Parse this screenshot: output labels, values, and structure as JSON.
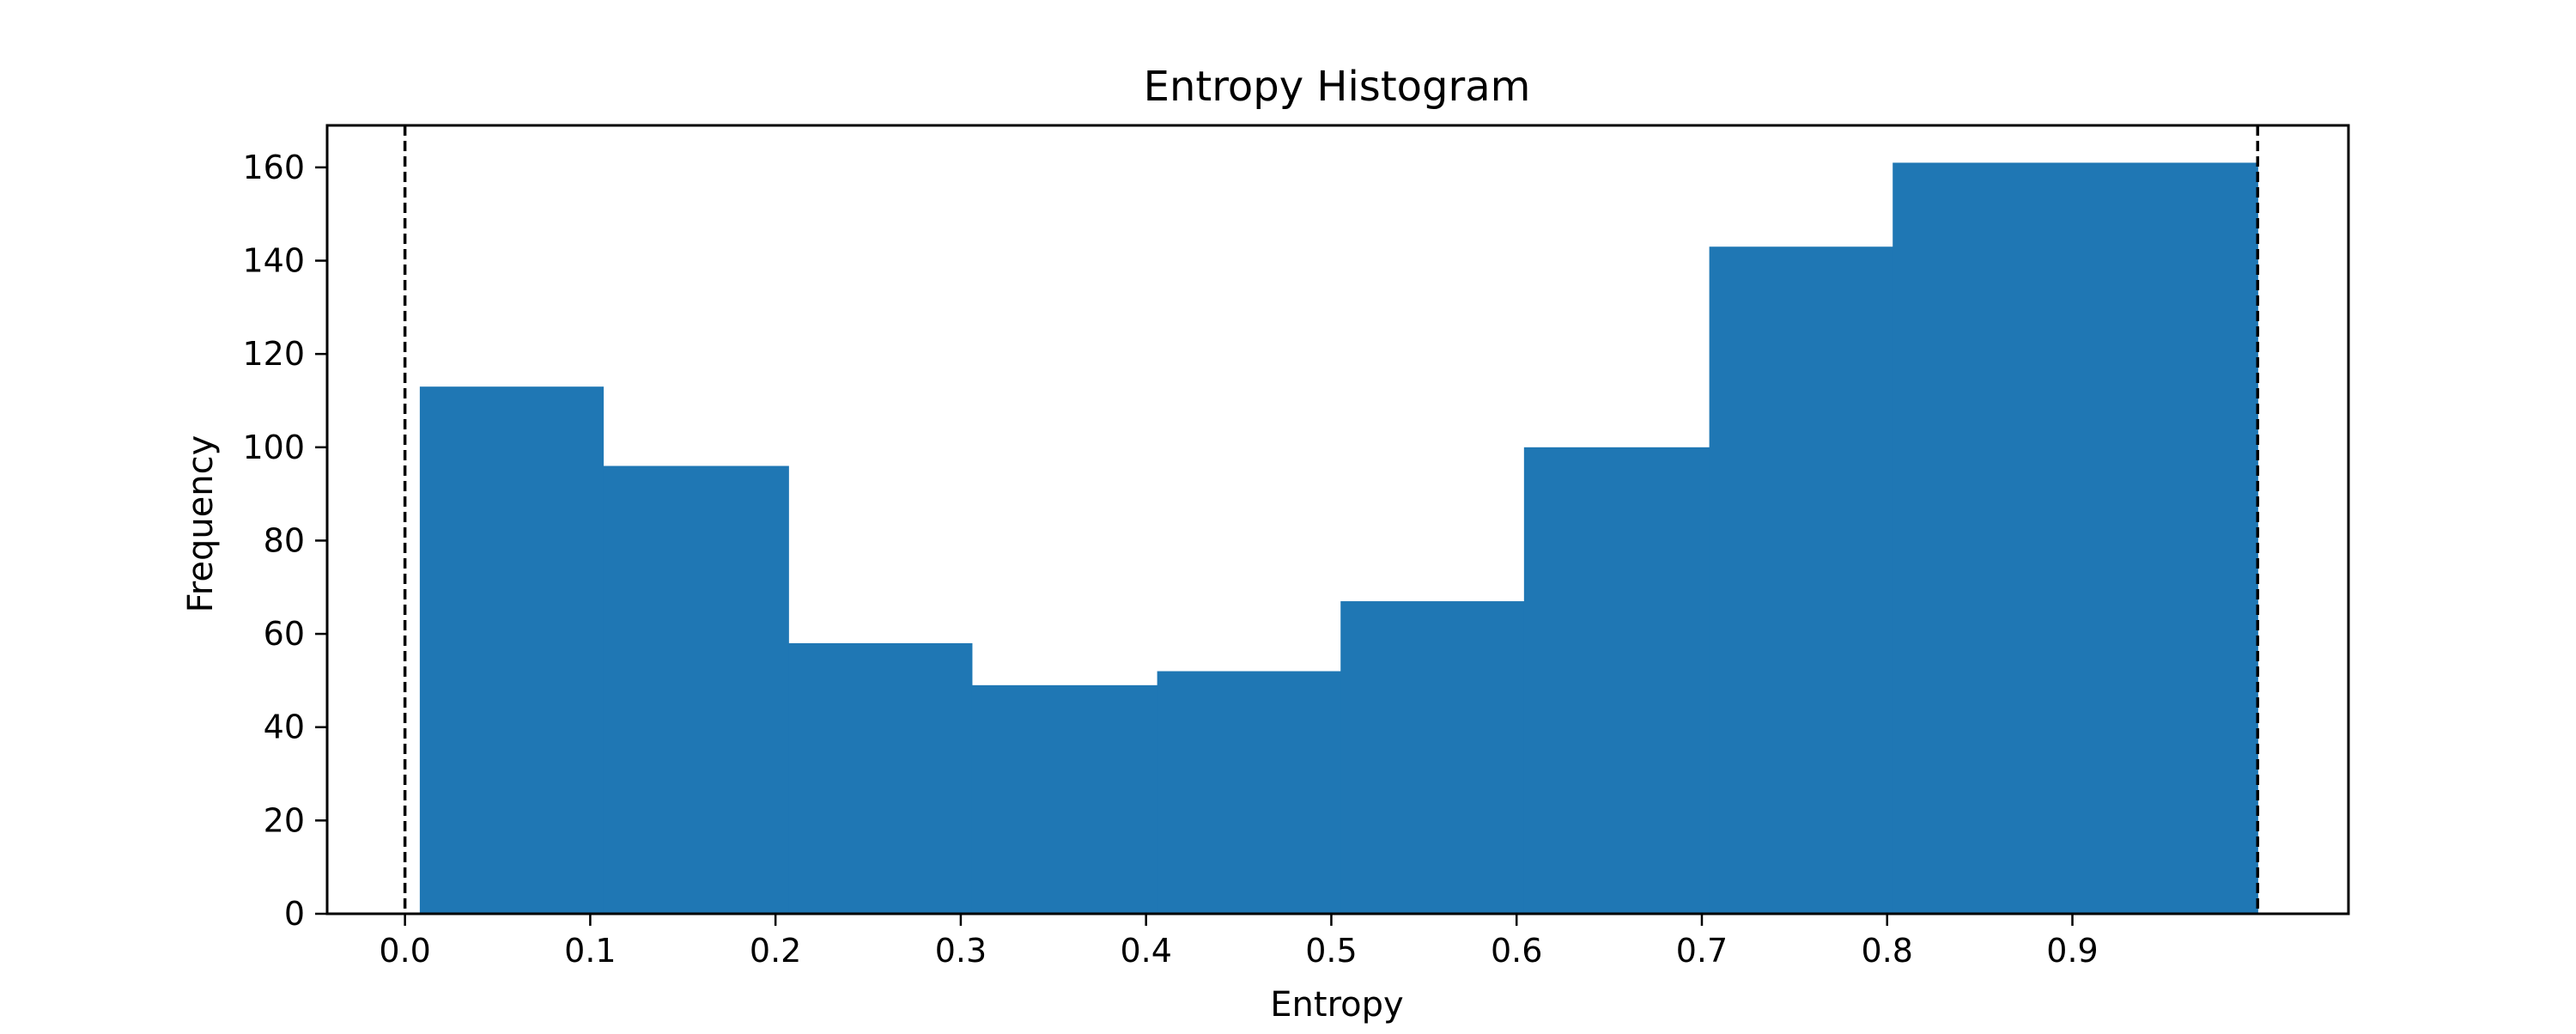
{
  "chart_data": {
    "type": "bar",
    "title": "Entropy Histogram",
    "xlabel": "Entropy",
    "ylabel": "Frequency",
    "bins": [
      {
        "start": 0.008,
        "end": 0.107,
        "count": 113
      },
      {
        "start": 0.107,
        "end": 0.207,
        "count": 96
      },
      {
        "start": 0.207,
        "end": 0.306,
        "count": 58
      },
      {
        "start": 0.306,
        "end": 0.406,
        "count": 49
      },
      {
        "start": 0.406,
        "end": 0.505,
        "count": 52
      },
      {
        "start": 0.505,
        "end": 0.604,
        "count": 67
      },
      {
        "start": 0.604,
        "end": 0.704,
        "count": 100
      },
      {
        "start": 0.704,
        "end": 0.803,
        "count": 143
      },
      {
        "start": 0.803,
        "end": 1.0,
        "count": 161
      }
    ],
    "xlim": [
      -0.042,
      1.049
    ],
    "ylim": [
      0,
      169
    ],
    "xticks": [
      0.0,
      0.1,
      0.2,
      0.3,
      0.4,
      0.5,
      0.6,
      0.7,
      0.8,
      0.9
    ],
    "xtick_labels": [
      "0.0",
      "0.1",
      "0.2",
      "0.3",
      "0.4",
      "0.5",
      "0.6",
      "0.7",
      "0.8",
      "0.9"
    ],
    "yticks": [
      0,
      20,
      40,
      60,
      80,
      100,
      120,
      140,
      160
    ],
    "ytick_labels": [
      "0",
      "20",
      "40",
      "60",
      "80",
      "100",
      "120",
      "140",
      "160"
    ],
    "reference_lines": [
      0.0,
      1.0
    ],
    "bar_color": "#1f77b4",
    "grid": false,
    "legend": "none"
  }
}
